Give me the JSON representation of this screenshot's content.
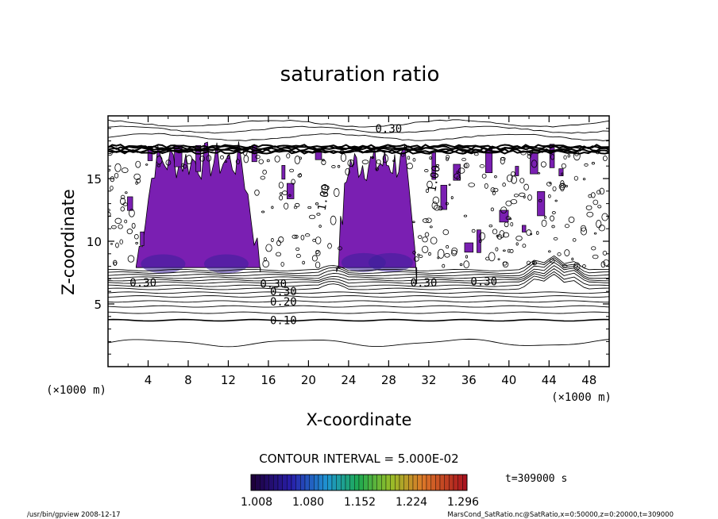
{
  "chart_data": {
    "type": "contour",
    "title": "saturation ratio",
    "xlabel": "X-coordinate",
    "ylabel": "Z-coordinate",
    "x_unit": "(×1000 m)",
    "x_unit_right": "(×1000 m)",
    "xlim": [
      0,
      50
    ],
    "ylim": [
      0,
      20
    ],
    "x_ticks": [
      4,
      8,
      12,
      16,
      20,
      24,
      28,
      32,
      36,
      40,
      44,
      48
    ],
    "y_ticks": [
      5,
      10,
      15
    ],
    "contour_interval_text": "CONTOUR INTERVAL = 5.000E-02",
    "colorbar_labels": [
      "1.008",
      "1.080",
      "1.152",
      "1.224",
      "1.296"
    ],
    "colorbar_range": [
      1.008,
      1.296
    ],
    "time_label": "t=309000 s",
    "contour_labels": [
      {
        "text": "0.30",
        "x": 28,
        "z": 19.0
      },
      {
        "text": "0.30",
        "x": 16.5,
        "z": 6.6
      },
      {
        "text": "0.30",
        "x": 17.5,
        "z": 6.0
      },
      {
        "text": "0.20",
        "x": 17.5,
        "z": 5.2
      },
      {
        "text": "0.10",
        "x": 17.5,
        "z": 3.7
      },
      {
        "text": "0.30",
        "x": 3.5,
        "z": 6.7
      },
      {
        "text": "0.30",
        "x": 31.5,
        "z": 6.7
      },
      {
        "text": "0.30",
        "x": 37.5,
        "z": 6.8
      },
      {
        "text": "1.00",
        "x": 21.5,
        "z": 13.5
      },
      {
        "text": "1.00",
        "x": 32.5,
        "z": 15.0
      }
    ],
    "colors": {
      "supersat_fill": "#7a1fb2",
      "supersat_dark": "#3a1f9a",
      "contour_line": "#000000"
    }
  },
  "footer": {
    "left": "/usr/bin/gpview   2008-12-17",
    "right": "MarsCond_SatRatio.nc@SatRatio,x=0:50000,z=0:20000,t=309000"
  }
}
